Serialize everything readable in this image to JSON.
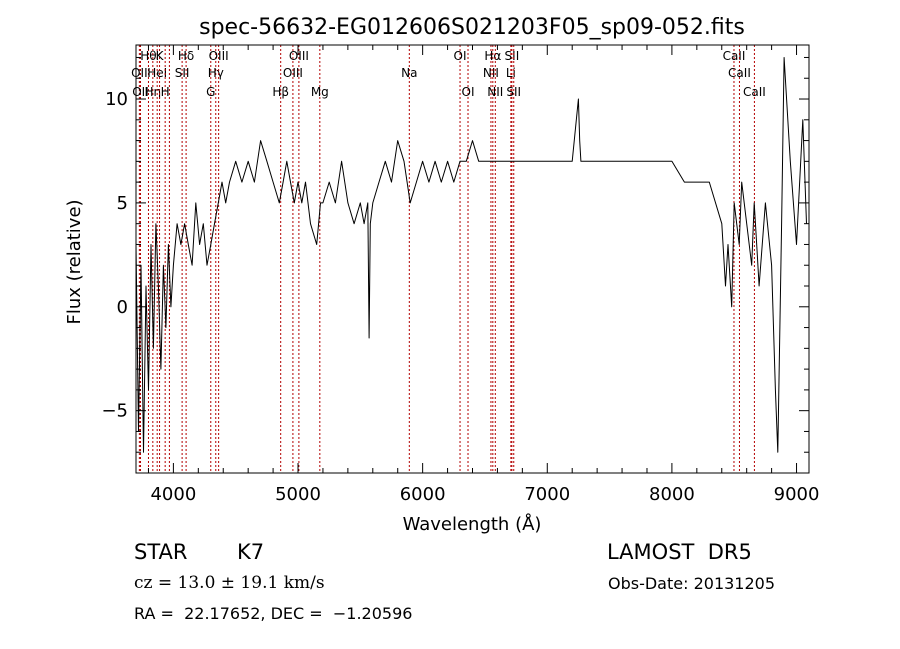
{
  "chart_data": {
    "type": "line",
    "title": "spec-56632-EG012606S021203F05_sp09-052.fits",
    "xlabel": "Wavelength (Å)",
    "ylabel": "Flux (relative)",
    "xlim": [
      3700,
      9100
    ],
    "ylim": [
      -8,
      12.6
    ],
    "x_ticks": [
      4000,
      5000,
      6000,
      7000,
      8000,
      9000
    ],
    "y_ticks": [
      -5,
      0,
      5,
      10
    ],
    "grid": false,
    "line_color": "#000000",
    "marker_color": "#b30000",
    "series": [
      {
        "x": [
          3700,
          3720,
          3740,
          3760,
          3780,
          3800,
          3820,
          3840,
          3860,
          3880,
          3900,
          3920,
          3940,
          3960,
          3980,
          4000,
          4030,
          4060,
          4090,
          4120,
          4150,
          4180,
          4210,
          4240,
          4270,
          4300,
          4330,
          4360,
          4390,
          4420,
          4450,
          4500,
          4550,
          4600,
          4650,
          4700,
          4750,
          4800,
          4850,
          4880,
          4910,
          4940,
          4970,
          5000,
          5030,
          5060,
          5100,
          5150,
          5180,
          5200,
          5250,
          5300,
          5350,
          5400,
          5450,
          5500,
          5530,
          5560,
          5570,
          5580,
          5600,
          5650,
          5700,
          5750,
          5800,
          5850,
          5900,
          5950,
          6000,
          6050,
          6100,
          6150,
          6200,
          6250,
          6300,
          6350,
          6400,
          6450,
          6500,
          6560,
          6600,
          6650,
          6700,
          6750,
          6800,
          6900,
          7000,
          7100,
          7200,
          7250,
          7260,
          7270,
          7300,
          7400,
          7500,
          7600,
          7700,
          7800,
          7900,
          8000,
          8100,
          8200,
          8300,
          8400,
          8430,
          8450,
          8480,
          8500,
          8540,
          8560,
          8600,
          8640,
          8660,
          8680,
          8700,
          8750,
          8800,
          8830,
          8850,
          8880,
          8900,
          8950,
          9000,
          9050,
          9080
        ],
        "y": [
          3,
          -6,
          2,
          -7,
          1,
          -4,
          3,
          -2,
          4,
          1,
          -3,
          2,
          -1,
          3,
          0,
          2,
          4,
          3,
          4,
          3,
          2,
          5,
          3,
          4,
          2,
          3,
          4,
          5,
          6,
          5,
          6,
          7,
          6,
          7,
          6,
          8,
          7,
          6,
          5,
          6,
          7,
          6,
          5,
          6,
          5,
          6,
          4,
          3,
          5,
          5,
          6,
          5,
          7,
          5,
          4,
          5,
          4,
          5,
          -1.5,
          4,
          5,
          6,
          7,
          6,
          8,
          7,
          5,
          6,
          7,
          6,
          7,
          6,
          7,
          6,
          7,
          7,
          8,
          7,
          7,
          7,
          7,
          7,
          7,
          7,
          7,
          7,
          7,
          7,
          7,
          10,
          8,
          7,
          7,
          7,
          7,
          7,
          7,
          7,
          7,
          7,
          6,
          6,
          6,
          4,
          1,
          3,
          0,
          5,
          3,
          6,
          4,
          2,
          5,
          3,
          1,
          5,
          2,
          -4,
          -7,
          4,
          12,
          7,
          3,
          9,
          4
        ]
      }
    ],
    "spectral_lines": [
      {
        "x": 3727,
        "label": "OII",
        "row": 2
      },
      {
        "x": 3736,
        "label": "OII",
        "row": 3
      },
      {
        "x": 3800,
        "label": "Hθ",
        "row": 1
      },
      {
        "x": 3835,
        "label": "Hη",
        "row": 3
      },
      {
        "x": 3870,
        "label": "HeI",
        "row": 2
      },
      {
        "x": 3889,
        "label": "K",
        "row": 1
      },
      {
        "x": 3934,
        "label": "H",
        "row": 3
      },
      {
        "x": 3968,
        "label": "",
        "row": 0
      },
      {
        "x": 4070,
        "label": "SII",
        "row": 2
      },
      {
        "x": 4102,
        "label": "Hδ",
        "row": 1
      },
      {
        "x": 4300,
        "label": "G",
        "row": 3
      },
      {
        "x": 4340,
        "label": "Hγ",
        "row": 2
      },
      {
        "x": 4363,
        "label": "OIII",
        "row": 1
      },
      {
        "x": 4861,
        "label": "Hβ",
        "row": 3
      },
      {
        "x": 4959,
        "label": "OIII",
        "row": 2
      },
      {
        "x": 5007,
        "label": "OIII",
        "row": 1
      },
      {
        "x": 5175,
        "label": "Mg",
        "row": 3
      },
      {
        "x": 5893,
        "label": "Na",
        "row": 2
      },
      {
        "x": 6300,
        "label": "OI",
        "row": 1
      },
      {
        "x": 6364,
        "label": "OI",
        "row": 3
      },
      {
        "x": 6548,
        "label": "NII",
        "row": 2
      },
      {
        "x": 6563,
        "label": "Hα",
        "row": 1
      },
      {
        "x": 6583,
        "label": "NII",
        "row": 3
      },
      {
        "x": 6708,
        "label": "Li",
        "row": 2
      },
      {
        "x": 6716,
        "label": "SII",
        "row": 1
      },
      {
        "x": 6731,
        "label": "SII",
        "row": 3
      },
      {
        "x": 8498,
        "label": "CaII",
        "row": 1
      },
      {
        "x": 8542,
        "label": "CaII",
        "row": 2
      },
      {
        "x": 8662,
        "label": "CaII",
        "row": 3
      }
    ]
  },
  "info": {
    "object_class": "STAR",
    "subclass": "K7",
    "survey": "LAMOST  DR5",
    "cz": "cz = 13.0 ± 19.1 km/s",
    "obs_date": "Obs-Date: 20131205",
    "coords": "RA =  22.17652, DEC =  −1.20596"
  }
}
